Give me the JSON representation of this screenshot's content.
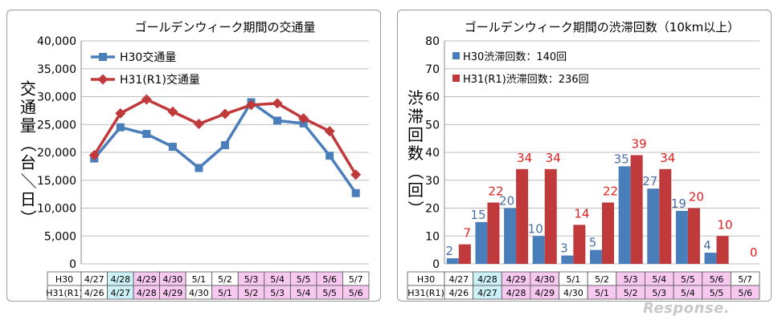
{
  "chart_data": [
    {
      "type": "line",
      "title": "ゴールデンウィーク期間の交通量",
      "ylabel": "交通量（台／日）",
      "ylim": [
        0,
        40000
      ],
      "yticks": [
        "0",
        "5,000",
        "10,000",
        "15,000",
        "20,000",
        "25,000",
        "30,000",
        "35,000",
        "40,000"
      ],
      "grid": true,
      "legend_position": "top-left",
      "series": [
        {
          "name": "H30交通量",
          "color": "#4a7ebb",
          "marker": "square",
          "values": [
            18900,
            24500,
            23300,
            21000,
            17200,
            21300,
            29000,
            25700,
            25200,
            19400,
            12700
          ]
        },
        {
          "name": "H31(R1)交通量",
          "color": "#c0393b",
          "marker": "diamond",
          "values": [
            19500,
            27000,
            29500,
            27300,
            25100,
            26900,
            28500,
            28800,
            26100,
            23800,
            16000
          ]
        }
      ],
      "table": {
        "rows": [
          {
            "label": "H30",
            "cells": [
              "4/27",
              "4/28",
              "4/29",
              "4/30",
              "5/1",
              "5/2",
              "5/3",
              "5/4",
              "5/5",
              "5/6",
              "5/7"
            ]
          },
          {
            "label": "H31(R1)",
            "cells": [
              "4/26",
              "4/27",
              "4/28",
              "4/29",
              "4/30",
              "5/1",
              "5/2",
              "5/3",
              "5/4",
              "5/5",
              "5/6"
            ]
          }
        ],
        "cell_colors": {
          "H30": [
            "#ffffff",
            "#ccf2f8",
            "#f7c8f0",
            "#f7c8f0",
            "#ffffff",
            "#ffffff",
            "#f7c8f0",
            "#f7c8f0",
            "#f7c8f0",
            "#f7c8f0",
            "#ffffff"
          ],
          "H31(R1)": [
            "#ffffff",
            "#ccf2f8",
            "#f7c8f0",
            "#f7c8f0",
            "#ffffff",
            "#f7c8f0",
            "#f7c8f0",
            "#f7c8f0",
            "#f7c8f0",
            "#f7c8f0",
            "#f7c8f0"
          ]
        }
      }
    },
    {
      "type": "bar",
      "title": "ゴールデンウィーク期間の渋滞回数（10km以上）",
      "ylabel": "渋滞回数（回）",
      "ylim": [
        0,
        80
      ],
      "yticks": [
        "0",
        "10",
        "20",
        "30",
        "40",
        "50",
        "60",
        "70",
        "80"
      ],
      "grid": true,
      "legend_position": "top-left",
      "series": [
        {
          "name": "H30渋滞回数：140回",
          "color": "#4a7ebb",
          "label_color": "#4a6fa5",
          "values": [
            2,
            15,
            20,
            10,
            3,
            5,
            35,
            27,
            19,
            4,
            null
          ]
        },
        {
          "name": "H31(R1)渋滞回数：236回",
          "color": "#c0393b",
          "label_color": "#e02020",
          "values": [
            7,
            22,
            34,
            34,
            14,
            22,
            39,
            34,
            20,
            10,
            0
          ]
        }
      ],
      "table": {
        "rows": [
          {
            "label": "H30",
            "cells": [
              "4/27",
              "4/28",
              "4/29",
              "4/30",
              "5/1",
              "5/2",
              "5/3",
              "5/4",
              "5/5",
              "5/6",
              "5/7"
            ]
          },
          {
            "label": "H31(R1)",
            "cells": [
              "4/26",
              "4/27",
              "4/28",
              "4/29",
              "4/30",
              "5/1",
              "5/2",
              "5/3",
              "5/4",
              "5/5",
              "5/6"
            ]
          }
        ],
        "cell_colors": {
          "H30": [
            "#ffffff",
            "#ccf2f8",
            "#f7c8f0",
            "#f7c8f0",
            "#ffffff",
            "#ffffff",
            "#f7c8f0",
            "#f7c8f0",
            "#f7c8f0",
            "#f7c8f0",
            "#ffffff"
          ],
          "H31(R1)": [
            "#ffffff",
            "#ccf2f8",
            "#f7c8f0",
            "#f7c8f0",
            "#ffffff",
            "#f7c8f0",
            "#f7c8f0",
            "#f7c8f0",
            "#f7c8f0",
            "#f7c8f0",
            "#f7c8f0"
          ]
        }
      }
    }
  ],
  "watermark": "Response."
}
